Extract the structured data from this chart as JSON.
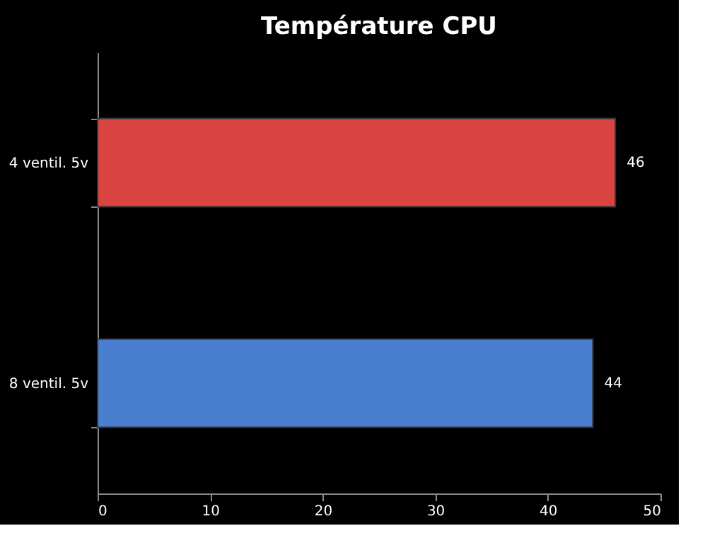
{
  "chart_data": {
    "type": "bar",
    "title": "Température CPU",
    "orientation": "horizontal",
    "categories": [
      "4 ventil. 5v",
      "8 ventil. 5v"
    ],
    "values": [
      46,
      44
    ],
    "colors": [
      "#d94441",
      "#4a7fd0"
    ],
    "xlim": [
      0,
      50
    ],
    "xticks": [
      0,
      10,
      20,
      30,
      40,
      50
    ],
    "data_labels": true,
    "grid": false
  }
}
